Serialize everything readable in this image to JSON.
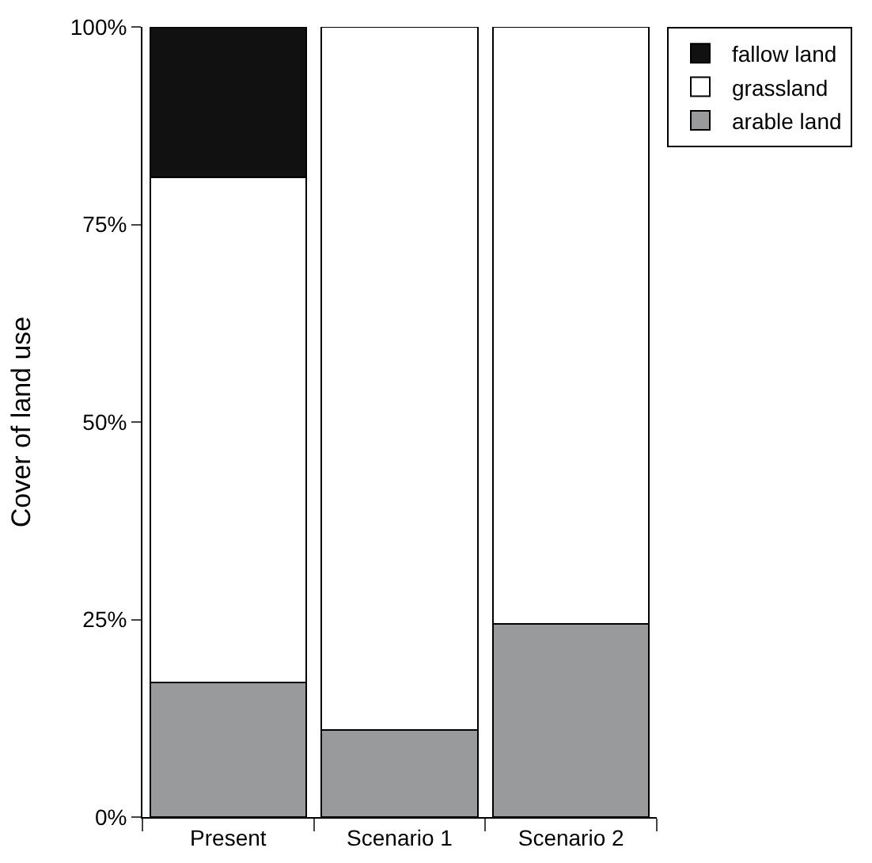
{
  "chart_data": {
    "type": "bar",
    "stacked": true,
    "ylabel": "Cover of land use",
    "categories": [
      "Present",
      "Scenario 1",
      "Scenario 2"
    ],
    "series": [
      {
        "name": "arable land",
        "color": "#999a9c",
        "values": [
          17,
          11,
          24.5
        ]
      },
      {
        "name": "grassland",
        "color": "#ffffff",
        "values": [
          64,
          89,
          75.5
        ]
      },
      {
        "name": "fallow land",
        "color": "#111111",
        "values": [
          19,
          null,
          null
        ]
      }
    ],
    "ylim": [
      0,
      100
    ],
    "yticks": [
      {
        "value": 0,
        "label": "0%"
      },
      {
        "value": 25,
        "label": "25%"
      },
      {
        "value": 50,
        "label": "50%"
      },
      {
        "value": 75,
        "label": "75%"
      },
      {
        "value": 100,
        "label": "100%"
      }
    ],
    "grid": false,
    "legend": "top right"
  }
}
